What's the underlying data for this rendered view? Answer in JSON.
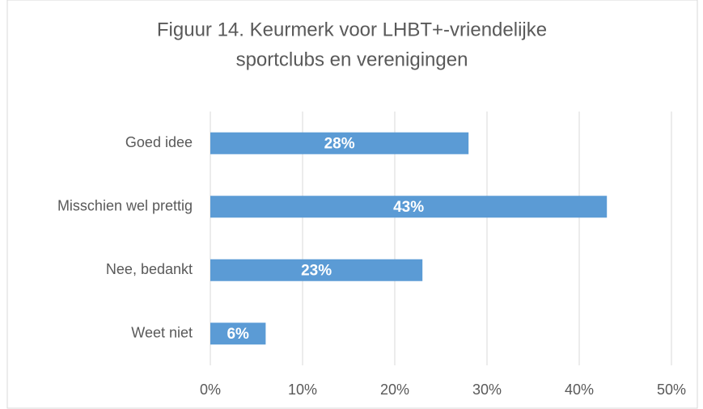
{
  "chart_data": {
    "type": "hbar",
    "title": [
      "Figuur 14.  Keurmerk voor LHBT+-vriendelijke",
      "sportclubs en verenigingen"
    ],
    "categories": [
      "Goed idee",
      "Misschien wel prettig",
      "Nee, bedankt",
      "Weet niet"
    ],
    "values": [
      28,
      43,
      23,
      6
    ],
    "value_labels": [
      "28%",
      "43%",
      "23%",
      "6%"
    ],
    "color": "#5b9bd5",
    "xlim": [
      0,
      50
    ],
    "xticks": [
      {
        "value": 0,
        "label": "0%"
      },
      {
        "value": 10,
        "label": "10%"
      },
      {
        "value": 20,
        "label": "20%"
      },
      {
        "value": 30,
        "label": "30%"
      },
      {
        "value": 40,
        "label": "40%"
      },
      {
        "value": 50,
        "label": "50%"
      }
    ],
    "grid": true
  }
}
